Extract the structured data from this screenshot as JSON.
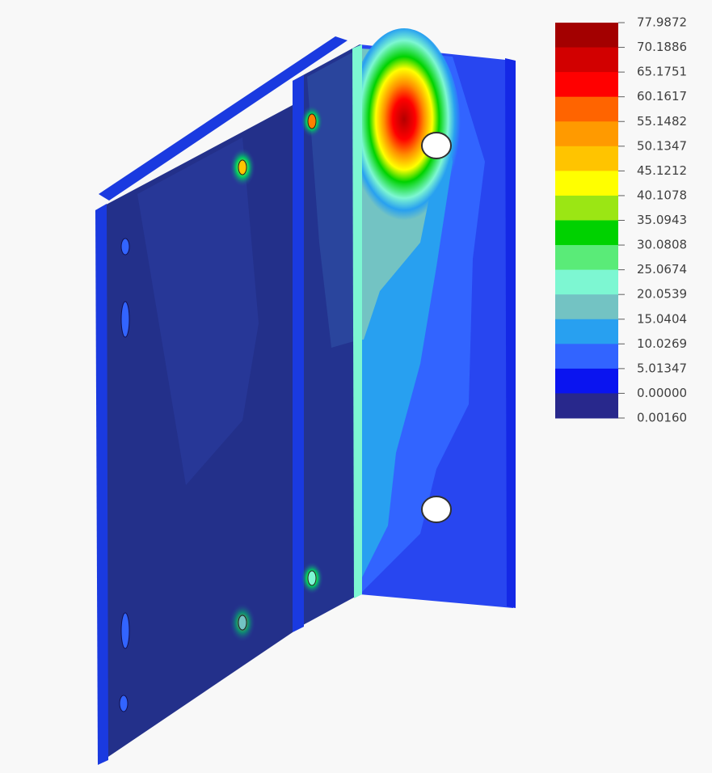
{
  "legend": {
    "labels": [
      "77.9872",
      "70.1886",
      "65.1751",
      "60.1617",
      "55.1482",
      "50.1347",
      "45.1212",
      "40.1078",
      "35.0943",
      "30.0808",
      "25.0674",
      "20.0539",
      "15.0404",
      "10.0269",
      "5.01347",
      "0.00000",
      "0.00160"
    ],
    "colors": [
      "#a30000",
      "#d20000",
      "#ff0000",
      "#ff6400",
      "#ff9a00",
      "#ffc400",
      "#ffff00",
      "#9be614",
      "#00d200",
      "#5aeb78",
      "#7df7d2",
      "#73c3c3",
      "#28a0f0",
      "#3264ff",
      "#0a14f0",
      "#28288c"
    ]
  }
}
